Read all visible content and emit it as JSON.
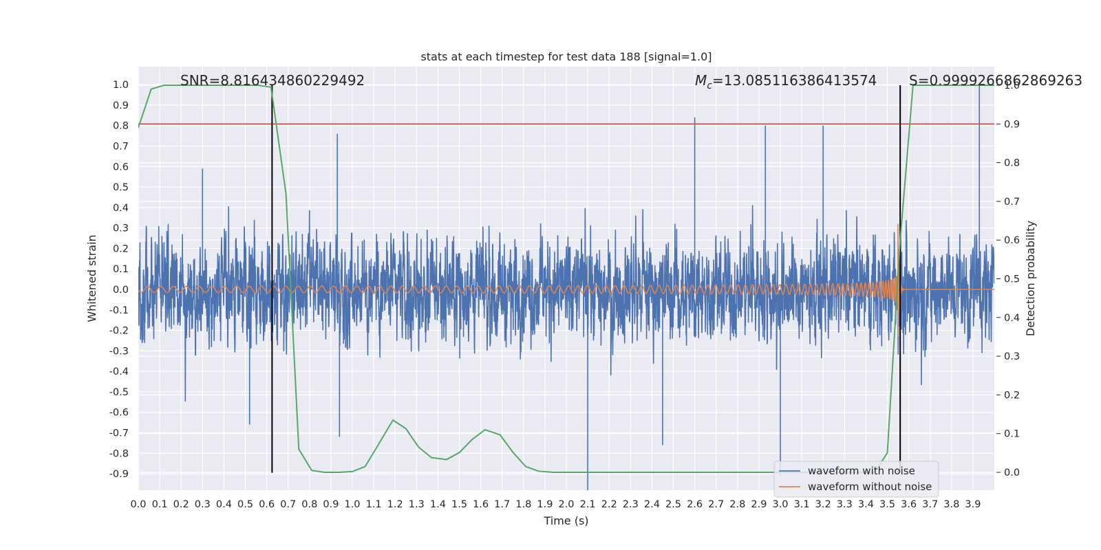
{
  "chart_data": {
    "type": "line",
    "title": "stats at each timestep for test data 188 [signal=1.0]",
    "xlabel": "Time (s)",
    "ylabel": "Whitened strain",
    "y2label": "Detection probability",
    "xlim": [
      0.0,
      4.0
    ],
    "ylim": [
      -1.0,
      1.1
    ],
    "y2lim": [
      -0.05,
      1.05
    ],
    "x_ticks": [
      "0.0",
      "0.1",
      "0.2",
      "0.3",
      "0.4",
      "0.5",
      "0.6",
      "0.7",
      "0.8",
      "0.9",
      "1.0",
      "1.1",
      "1.2",
      "1.3",
      "1.4",
      "1.5",
      "1.6",
      "1.7",
      "1.8",
      "1.9",
      "2.0",
      "2.1",
      "2.2",
      "2.3",
      "2.4",
      "2.5",
      "2.6",
      "2.7",
      "2.8",
      "2.9",
      "3.0",
      "3.1",
      "3.2",
      "3.3",
      "3.4",
      "3.5",
      "3.6",
      "3.7",
      "3.8",
      "3.9"
    ],
    "y_ticks": [
      "1.0",
      "0.9",
      "0.8",
      "0.7",
      "0.6",
      "0.5",
      "0.4",
      "0.3",
      "0.2",
      "0.1",
      "0.0",
      "-0.1",
      "-0.2",
      "-0.3",
      "-0.4",
      "-0.5",
      "-0.6",
      "-0.7",
      "-0.8",
      "-0.9"
    ],
    "y2_ticks": [
      "1.0",
      "0.9",
      "0.8",
      "0.7",
      "0.6",
      "0.5",
      "0.4",
      "0.3",
      "0.2",
      "0.1",
      "0.0"
    ],
    "grid": true,
    "legend_position": "lower-right",
    "annotations": {
      "snr": "SNR=8.816434860229492",
      "mc_symbol": "M",
      "mc_sub": "c",
      "mc_value": "=13.085116386413574",
      "s": "S=0.9999266862869263"
    },
    "threshold_line": {
      "y2": 0.9,
      "color": "#c44e52"
    },
    "vertical_lines": [
      0.625,
      3.56
    ],
    "series": [
      {
        "name": "waveform with noise",
        "color": "#4c72b0",
        "axis": "left",
        "description_samples": 4096,
        "envelope_typical": 0.45,
        "peaks": [
          [
            0.93,
            0.76
          ],
          [
            0.3,
            0.59
          ],
          [
            2.6,
            0.84
          ],
          [
            2.93,
            0.8
          ],
          [
            3.2,
            0.8
          ],
          [
            3.93,
            1.0
          ],
          [
            2.1,
            -0.98
          ],
          [
            3.0,
            -0.91
          ],
          [
            0.52,
            -0.66
          ],
          [
            2.45,
            -0.76
          ],
          [
            0.94,
            -0.72
          ]
        ]
      },
      {
        "name": "waveform without noise",
        "color": "#dd8452",
        "axis": "left",
        "chirp_amplitude_start": 0.015,
        "chirp_amplitude_peak": 0.32,
        "merger_time": 3.55
      },
      {
        "name": "detection probability",
        "color": "#55a868",
        "axis": "right",
        "x": [
          0.0,
          0.06,
          0.12,
          0.19,
          0.25,
          0.31,
          0.38,
          0.44,
          0.5,
          0.56,
          0.62,
          0.69,
          0.75,
          0.81,
          0.87,
          0.94,
          1.0,
          1.06,
          1.12,
          1.19,
          1.25,
          1.31,
          1.37,
          1.44,
          1.5,
          1.56,
          1.62,
          1.69,
          1.75,
          1.81,
          1.87,
          1.94,
          2.0,
          2.5,
          3.0,
          3.37,
          3.44,
          3.5,
          3.56,
          3.62,
          3.69,
          3.75,
          3.81,
          3.87,
          3.94,
          4.0
        ],
        "values": [
          0.89,
          0.99,
          1.0,
          1.0,
          1.0,
          1.0,
          1.0,
          1.0,
          1.0,
          1.0,
          0.995,
          0.72,
          0.06,
          0.005,
          0.0,
          0.0,
          0.002,
          0.015,
          0.07,
          0.135,
          0.113,
          0.065,
          0.038,
          0.033,
          0.051,
          0.085,
          0.11,
          0.097,
          0.052,
          0.015,
          0.003,
          0.0,
          0.0,
          0.0,
          0.0,
          0.0,
          0.0,
          0.05,
          0.6,
          1.0,
          1.0,
          1.0,
          1.0,
          1.0,
          1.0,
          1.0
        ]
      }
    ],
    "legend": [
      "waveform with noise",
      "waveform without noise"
    ]
  }
}
